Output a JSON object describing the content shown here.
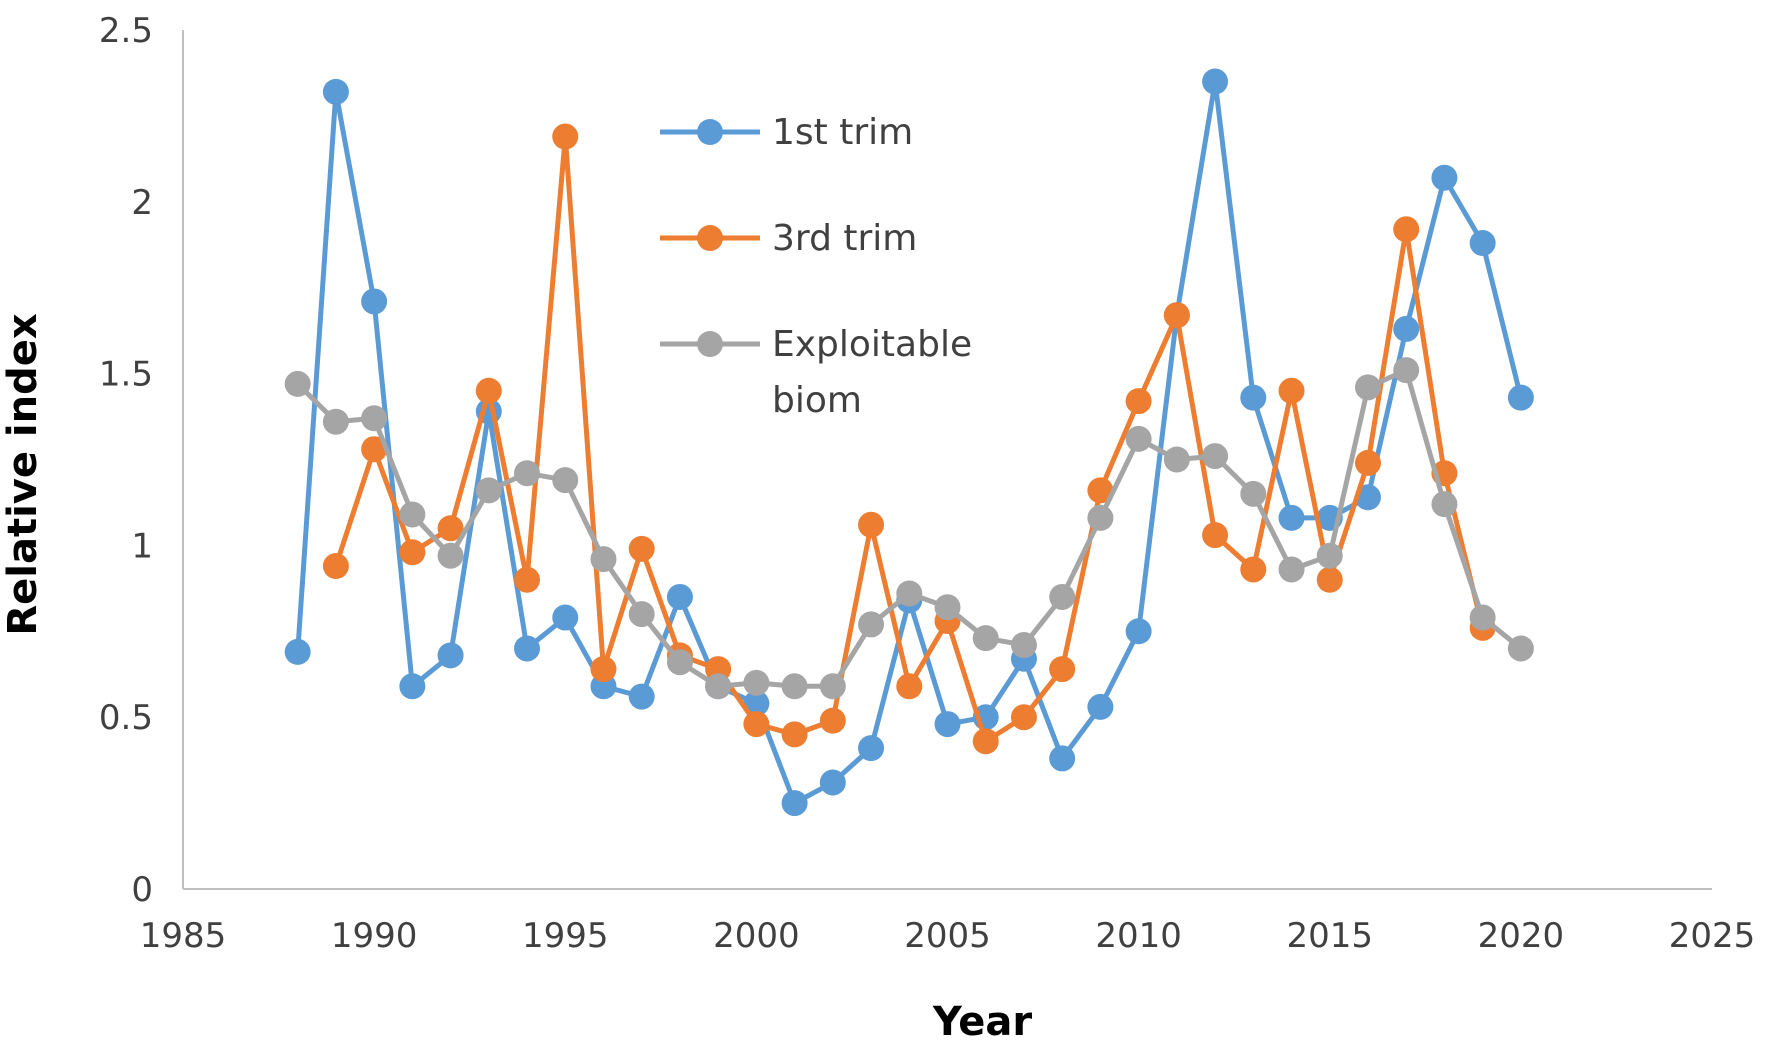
{
  "chart_data": {
    "type": "line",
    "title": "",
    "xlabel": "Year",
    "ylabel": "Relative index",
    "xlim": [
      1985,
      2025
    ],
    "ylim": [
      0,
      2.5
    ],
    "x_ticks": [
      1985,
      1990,
      1995,
      2000,
      2005,
      2010,
      2015,
      2020,
      2025
    ],
    "x_tick_labels": [
      "1985",
      "1990",
      "1995",
      "2000",
      "2005",
      "2010",
      "2015",
      "2020",
      "2025"
    ],
    "y_ticks": [
      0,
      0.5,
      1,
      1.5,
      2,
      2.5
    ],
    "y_tick_labels": [
      "0",
      "0.5",
      "1",
      "1.5",
      "2",
      "2.5"
    ],
    "grid": false,
    "legend_position": "top-center",
    "legend_items": [
      {
        "lines": [
          "1st trim"
        ],
        "color": "#5b9bd5"
      },
      {
        "lines": [
          "3rd trim"
        ],
        "color": "#ed7d31"
      },
      {
        "lines": [
          "Exploitable",
          "biom"
        ],
        "color": "#a5a5a5"
      }
    ],
    "series": [
      {
        "name": "1st trim",
        "color": "#5b9bd5",
        "x": [
          1988,
          1989,
          1990,
          1991,
          1992,
          1993,
          1994,
          1995,
          1996,
          1997,
          1998,
          1999,
          2000,
          2001,
          2002,
          2003,
          2004,
          2005,
          2006,
          2007,
          2008,
          2009,
          2010,
          2011,
          2012,
          2013,
          2014,
          2015,
          2016,
          2017,
          2018,
          2019,
          2020
        ],
        "y": [
          0.69,
          2.32,
          1.71,
          0.59,
          0.68,
          1.39,
          0.7,
          0.79,
          0.59,
          0.56,
          0.85,
          0.59,
          0.54,
          0.25,
          0.31,
          0.41,
          0.84,
          0.48,
          0.5,
          0.67,
          0.38,
          0.53,
          0.75,
          1.67,
          2.35,
          1.43,
          1.08,
          1.08,
          1.14,
          1.63,
          2.07,
          1.88,
          1.43
        ]
      },
      {
        "name": "3rd trim",
        "color": "#ed7d31",
        "x": [
          1989,
          1990,
          1991,
          1992,
          1993,
          1994,
          1995,
          1996,
          1997,
          1998,
          1999,
          2000,
          2001,
          2002,
          2003,
          2004,
          2005,
          2006,
          2007,
          2008,
          2009,
          2010,
          2011,
          2012,
          2013,
          2014,
          2015,
          2016,
          2017,
          2018,
          2019
        ],
        "y": [
          0.94,
          1.28,
          0.98,
          1.05,
          1.45,
          0.9,
          2.19,
          0.64,
          0.99,
          0.68,
          0.64,
          0.48,
          0.45,
          0.49,
          1.06,
          0.59,
          0.78,
          0.43,
          0.5,
          0.64,
          1.16,
          1.42,
          1.67,
          1.03,
          0.93,
          1.45,
          0.9,
          1.24,
          1.92,
          1.21,
          0.76
        ]
      },
      {
        "name": "Exploitable biom",
        "color": "#a5a5a5",
        "x": [
          1988,
          1989,
          1990,
          1991,
          1992,
          1993,
          1994,
          1995,
          1996,
          1997,
          1998,
          1999,
          2000,
          2001,
          2002,
          2003,
          2004,
          2005,
          2006,
          2007,
          2008,
          2009,
          2010,
          2011,
          2012,
          2013,
          2014,
          2015,
          2016,
          2017,
          2018,
          2019,
          2020
        ],
        "y": [
          1.47,
          1.36,
          1.37,
          1.09,
          0.97,
          1.16,
          1.21,
          1.19,
          0.96,
          0.8,
          0.66,
          0.59,
          0.6,
          0.59,
          0.59,
          0.77,
          0.86,
          0.82,
          0.73,
          0.71,
          0.85,
          1.08,
          1.31,
          1.25,
          1.26,
          1.15,
          0.93,
          0.97,
          1.46,
          1.51,
          1.12,
          0.79,
          0.7
        ]
      }
    ]
  }
}
